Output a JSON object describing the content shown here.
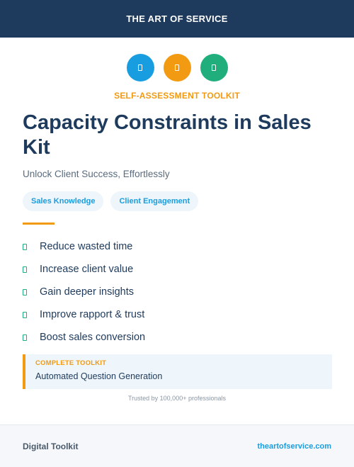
{
  "header": {
    "brand": "THE ART OF SERVICE"
  },
  "icons": [
    {
      "name": "document-icon",
      "color": "#189ee0"
    },
    {
      "name": "document-icon",
      "color": "#f29a12"
    },
    {
      "name": "document-icon",
      "color": "#1fae7c"
    }
  ],
  "eyebrow": "SELF-ASSESSMENT TOOLKIT",
  "title": "Capacity Constraints in Sales Kit",
  "subtitle": "Unlock Client Success, Effortlessly",
  "tags": [
    "Sales Knowledge",
    "Client Engagement"
  ],
  "benefits": [
    "Reduce wasted time",
    "Increase client value",
    "Gain deeper insights",
    "Improve rapport & trust",
    "Boost sales conversion"
  ],
  "callout": {
    "label": "COMPLETE TOOLKIT",
    "text": "Automated Question Generation"
  },
  "trusted": "Trusted by 100,000+ professionals",
  "footer": {
    "left": "Digital Toolkit",
    "right": "theartofservice.com"
  },
  "colors": {
    "navy": "#1e3a5c",
    "orange": "#f29a12",
    "blue": "#189ee0",
    "green": "#1fae7c"
  }
}
